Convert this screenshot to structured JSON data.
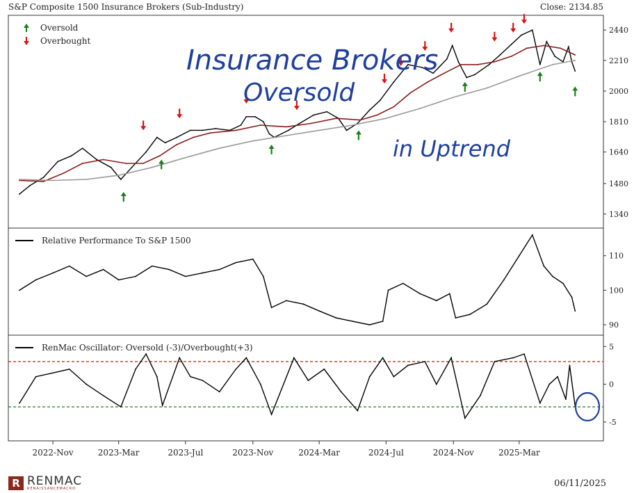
{
  "header": {
    "title": "S&P Composite 1500 Insurance Brokers (Sub-Industry)",
    "close": "Close: 2134.85"
  },
  "annotation": {
    "line1": "Insurance Brokers",
    "line2": "Oversold",
    "line3": "in Uptrend"
  },
  "footer": {
    "logo_mark": "R",
    "logo_name": "RENMAC",
    "logo_sub": "RENAISSANCEMACRO",
    "date": "06/11/2025"
  },
  "chart_data": [
    {
      "type": "line",
      "panel": "price",
      "legend": [
        {
          "label": "Oversold",
          "color": "#1a7f1a",
          "icon": "up-arrow-icon"
        },
        {
          "label": "Overbought",
          "color": "#dd1111",
          "icon": "down-arrow-icon"
        }
      ],
      "legend_position": "top-left",
      "ylim": [
        1280,
        2560
      ],
      "yticks": [
        1340,
        1480,
        1640,
        1810,
        2000,
        2210,
        2440
      ],
      "log_scale": true,
      "series": [
        {
          "color": "#000000",
          "points": [
            [
              "2022-09-01",
              1430
            ],
            [
              "2022-09-20",
              1470
            ],
            [
              "2022-10-15",
              1510
            ],
            [
              "2022-11-10",
              1590
            ],
            [
              "2022-12-05",
              1620
            ],
            [
              "2022-12-25",
              1660
            ],
            [
              "2023-01-20",
              1600
            ],
            [
              "2023-02-15",
              1560
            ],
            [
              "2023-03-05",
              1500
            ],
            [
              "2023-03-25",
              1560
            ],
            [
              "2023-04-20",
              1640
            ],
            [
              "2023-05-10",
              1720
            ],
            [
              "2023-05-25",
              1690
            ],
            [
              "2023-06-15",
              1720
            ],
            [
              "2023-07-10",
              1760
            ],
            [
              "2023-08-01",
              1760
            ],
            [
              "2023-08-25",
              1770
            ],
            [
              "2023-09-20",
              1760
            ],
            [
              "2023-10-10",
              1790
            ],
            [
              "2023-10-20",
              1840
            ],
            [
              "2023-11-05",
              1840
            ],
            [
              "2023-11-20",
              1810
            ],
            [
              "2023-12-01",
              1740
            ],
            [
              "2023-12-10",
              1720
            ],
            [
              "2024-01-05",
              1760
            ],
            [
              "2024-01-25",
              1800
            ],
            [
              "2024-02-20",
              1850
            ],
            [
              "2024-03-15",
              1870
            ],
            [
              "2024-04-05",
              1830
            ],
            [
              "2024-04-20",
              1760
            ],
            [
              "2024-05-10",
              1800
            ],
            [
              "2024-06-01",
              1880
            ],
            [
              "2024-06-20",
              1940
            ],
            [
              "2024-07-15",
              2060
            ],
            [
              "2024-08-10",
              2180
            ],
            [
              "2024-09-05",
              2160
            ],
            [
              "2024-09-25",
              2120
            ],
            [
              "2024-10-20",
              2220
            ],
            [
              "2024-10-30",
              2320
            ],
            [
              "2024-11-10",
              2200
            ],
            [
              "2024-11-25",
              2090
            ],
            [
              "2024-12-10",
              2110
            ],
            [
              "2025-01-05",
              2180
            ],
            [
              "2025-01-25",
              2250
            ],
            [
              "2025-02-15",
              2330
            ],
            [
              "2025-03-05",
              2400
            ],
            [
              "2025-03-25",
              2440
            ],
            [
              "2025-04-08",
              2180
            ],
            [
              "2025-04-20",
              2350
            ],
            [
              "2025-05-05",
              2240
            ],
            [
              "2025-05-20",
              2200
            ],
            [
              "2025-05-30",
              2310
            ],
            [
              "2025-06-05",
              2200
            ],
            [
              "2025-06-11",
              2135
            ]
          ]
        },
        {
          "color": "#8b1a1a",
          "points": [
            [
              "2022-09-01",
              1495
            ],
            [
              "2022-10-15",
              1490
            ],
            [
              "2022-11-20",
              1530
            ],
            [
              "2022-12-25",
              1580
            ],
            [
              "2023-02-01",
              1600
            ],
            [
              "2023-03-15",
              1580
            ],
            [
              "2023-04-15",
              1580
            ],
            [
              "2023-05-15",
              1620
            ],
            [
              "2023-06-15",
              1680
            ],
            [
              "2023-07-15",
              1720
            ],
            [
              "2023-08-15",
              1745
            ],
            [
              "2023-10-01",
              1760
            ],
            [
              "2023-11-15",
              1790
            ],
            [
              "2024-01-01",
              1780
            ],
            [
              "2024-02-15",
              1800
            ],
            [
              "2024-04-01",
              1830
            ],
            [
              "2024-05-15",
              1820
            ],
            [
              "2024-06-15",
              1850
            ],
            [
              "2024-07-15",
              1900
            ],
            [
              "2024-08-15",
              1990
            ],
            [
              "2024-09-15",
              2060
            ],
            [
              "2024-10-15",
              2120
            ],
            [
              "2024-11-15",
              2180
            ],
            [
              "2024-12-15",
              2180
            ],
            [
              "2025-01-15",
              2200
            ],
            [
              "2025-02-15",
              2240
            ],
            [
              "2025-03-15",
              2300
            ],
            [
              "2025-04-15",
              2320
            ],
            [
              "2025-05-15",
              2300
            ],
            [
              "2025-06-11",
              2250
            ]
          ]
        },
        {
          "color": "#999999",
          "points": [
            [
              "2022-09-01",
              1500
            ],
            [
              "2022-11-01",
              1495
            ],
            [
              "2023-01-01",
              1500
            ],
            [
              "2023-03-01",
              1520
            ],
            [
              "2023-05-01",
              1560
            ],
            [
              "2023-07-01",
              1610
            ],
            [
              "2023-09-01",
              1660
            ],
            [
              "2023-11-01",
              1700
            ],
            [
              "2024-01-01",
              1730
            ],
            [
              "2024-03-01",
              1760
            ],
            [
              "2024-05-01",
              1790
            ],
            [
              "2024-07-01",
              1830
            ],
            [
              "2024-09-01",
              1890
            ],
            [
              "2024-11-01",
              1960
            ],
            [
              "2025-01-01",
              2020
            ],
            [
              "2025-03-01",
              2100
            ],
            [
              "2025-05-01",
              2180
            ],
            [
              "2025-06-11",
              2210
            ]
          ]
        }
      ],
      "markers": [
        {
          "kind": "oversold",
          "date": "2023-03-10",
          "value": 1440
        },
        {
          "kind": "oversold",
          "date": "2023-05-18",
          "value": 1600
        },
        {
          "kind": "oversold",
          "date": "2023-12-05",
          "value": 1680
        },
        {
          "kind": "oversold",
          "date": "2024-05-12",
          "value": 1760
        },
        {
          "kind": "oversold",
          "date": "2024-11-22",
          "value": 2060
        },
        {
          "kind": "oversold",
          "date": "2025-04-08",
          "value": 2130
        },
        {
          "kind": "oversold",
          "date": "2025-06-11",
          "value": 2030
        },
        {
          "kind": "overbought",
          "date": "2023-04-15",
          "value": 1760
        },
        {
          "kind": "overbought",
          "date": "2023-06-20",
          "value": 1830
        },
        {
          "kind": "overbought",
          "date": "2023-10-20",
          "value": 1920
        },
        {
          "kind": "overbought",
          "date": "2024-01-20",
          "value": 1880
        },
        {
          "kind": "overbought",
          "date": "2024-06-28",
          "value": 2050
        },
        {
          "kind": "overbought",
          "date": "2024-07-28",
          "value": 2170
        },
        {
          "kind": "overbought",
          "date": "2024-09-10",
          "value": 2280
        },
        {
          "kind": "overbought",
          "date": "2024-10-28",
          "value": 2420
        },
        {
          "kind": "overbought",
          "date": "2025-01-15",
          "value": 2350
        },
        {
          "kind": "overbought",
          "date": "2025-02-18",
          "value": 2420
        },
        {
          "kind": "overbought",
          "date": "2025-03-10",
          "value": 2490
        }
      ]
    },
    {
      "type": "line",
      "panel": "relative",
      "legend": [
        {
          "label": "Relative Performance To S&P 1500",
          "color": "#000000"
        }
      ],
      "ylim": [
        87,
        118
      ],
      "yticks": [
        90,
        100,
        110
      ],
      "series": [
        {
          "color": "#000000",
          "points": [
            [
              "2022-09-01",
              100
            ],
            [
              "2022-10-01",
              103
            ],
            [
              "2022-11-01",
              105
            ],
            [
              "2022-12-01",
              107
            ],
            [
              "2023-01-01",
              104
            ],
            [
              "2023-02-01",
              106
            ],
            [
              "2023-03-01",
              103
            ],
            [
              "2023-04-01",
              104
            ],
            [
              "2023-05-01",
              107
            ],
            [
              "2023-06-01",
              106
            ],
            [
              "2023-07-01",
              104
            ],
            [
              "2023-08-01",
              105
            ],
            [
              "2023-09-01",
              106
            ],
            [
              "2023-10-01",
              108
            ],
            [
              "2023-11-01",
              109
            ],
            [
              "2023-11-20",
              104
            ],
            [
              "2023-12-05",
              95
            ],
            [
              "2024-01-01",
              97
            ],
            [
              "2024-02-01",
              96
            ],
            [
              "2024-03-01",
              94
            ],
            [
              "2024-04-01",
              92
            ],
            [
              "2024-05-01",
              91
            ],
            [
              "2024-06-01",
              90
            ],
            [
              "2024-06-25",
              91
            ],
            [
              "2024-07-05",
              100
            ],
            [
              "2024-08-01",
              102
            ],
            [
              "2024-09-01",
              99
            ],
            [
              "2024-10-01",
              97
            ],
            [
              "2024-10-25",
              99
            ],
            [
              "2024-11-05",
              92
            ],
            [
              "2024-12-01",
              93
            ],
            [
              "2025-01-01",
              96
            ],
            [
              "2025-02-01",
              103
            ],
            [
              "2025-03-01",
              110
            ],
            [
              "2025-03-25",
              116
            ],
            [
              "2025-04-15",
              107
            ],
            [
              "2025-05-01",
              104
            ],
            [
              "2025-05-20",
              102
            ],
            [
              "2025-06-05",
              98
            ],
            [
              "2025-06-11",
              94
            ]
          ]
        }
      ]
    },
    {
      "type": "line",
      "panel": "oscillator",
      "legend": [
        {
          "label": "RenMac Oscillator: Oversold (-3)/Overbought(+3)",
          "color": "#000000"
        }
      ],
      "ylim": [
        -7.5,
        6.5
      ],
      "yticks": [
        5,
        0,
        -5
      ],
      "reference_lines": [
        {
          "value": 3,
          "color": "#dd1111"
        },
        {
          "value": -3,
          "color": "#1a7f1a"
        }
      ],
      "series": [
        {
          "color": "#000000",
          "points": [
            [
              "2022-09-01",
              -2.5
            ],
            [
              "2022-10-01",
              1
            ],
            [
              "2022-11-01",
              1.5
            ],
            [
              "2022-12-01",
              2
            ],
            [
              "2023-01-01",
              0
            ],
            [
              "2023-02-01",
              -1.5
            ],
            [
              "2023-03-05",
              -3
            ],
            [
              "2023-04-01",
              2
            ],
            [
              "2023-04-20",
              4
            ],
            [
              "2023-05-10",
              1
            ],
            [
              "2023-05-20",
              -2.8
            ],
            [
              "2023-06-20",
              3.5
            ],
            [
              "2023-07-10",
              1
            ],
            [
              "2023-08-01",
              0.5
            ],
            [
              "2023-09-01",
              -1
            ],
            [
              "2023-10-01",
              2
            ],
            [
              "2023-10-20",
              3.5
            ],
            [
              "2023-11-15",
              0
            ],
            [
              "2023-12-05",
              -4
            ],
            [
              "2024-01-15",
              3.5
            ],
            [
              "2024-02-10",
              0.5
            ],
            [
              "2024-03-10",
              2
            ],
            [
              "2024-04-10",
              -1
            ],
            [
              "2024-05-10",
              -3.5
            ],
            [
              "2024-06-01",
              1
            ],
            [
              "2024-06-25",
              3.5
            ],
            [
              "2024-07-15",
              1
            ],
            [
              "2024-08-10",
              2.5
            ],
            [
              "2024-09-10",
              3
            ],
            [
              "2024-10-01",
              0
            ],
            [
              "2024-10-28",
              3.5
            ],
            [
              "2024-11-22",
              -4.5
            ],
            [
              "2024-12-20",
              -1.5
            ],
            [
              "2025-01-15",
              3
            ],
            [
              "2025-02-18",
              3.5
            ],
            [
              "2025-03-10",
              4
            ],
            [
              "2025-04-08",
              -2.5
            ],
            [
              "2025-04-25",
              0
            ],
            [
              "2025-05-10",
              1
            ],
            [
              "2025-05-25",
              -2
            ],
            [
              "2025-06-01",
              2.5
            ],
            [
              "2025-06-11",
              -2.9
            ]
          ]
        }
      ]
    }
  ],
  "x_axis": {
    "ticks": [
      {
        "label": "2022-Nov",
        "date": "2022-11-01"
      },
      {
        "label": "2023-Mar",
        "date": "2023-03-01"
      },
      {
        "label": "2023-Jul",
        "date": "2023-07-01"
      },
      {
        "label": "2023-Nov",
        "date": "2023-11-01"
      },
      {
        "label": "2024-Mar",
        "date": "2024-03-01"
      },
      {
        "label": "2024-Jul",
        "date": "2024-07-01"
      },
      {
        "label": "2024-Nov",
        "date": "2024-11-01"
      },
      {
        "label": "2025-Mar",
        "date": "2025-03-01"
      }
    ],
    "range": [
      "2022-09-01",
      "2025-07-20"
    ]
  }
}
